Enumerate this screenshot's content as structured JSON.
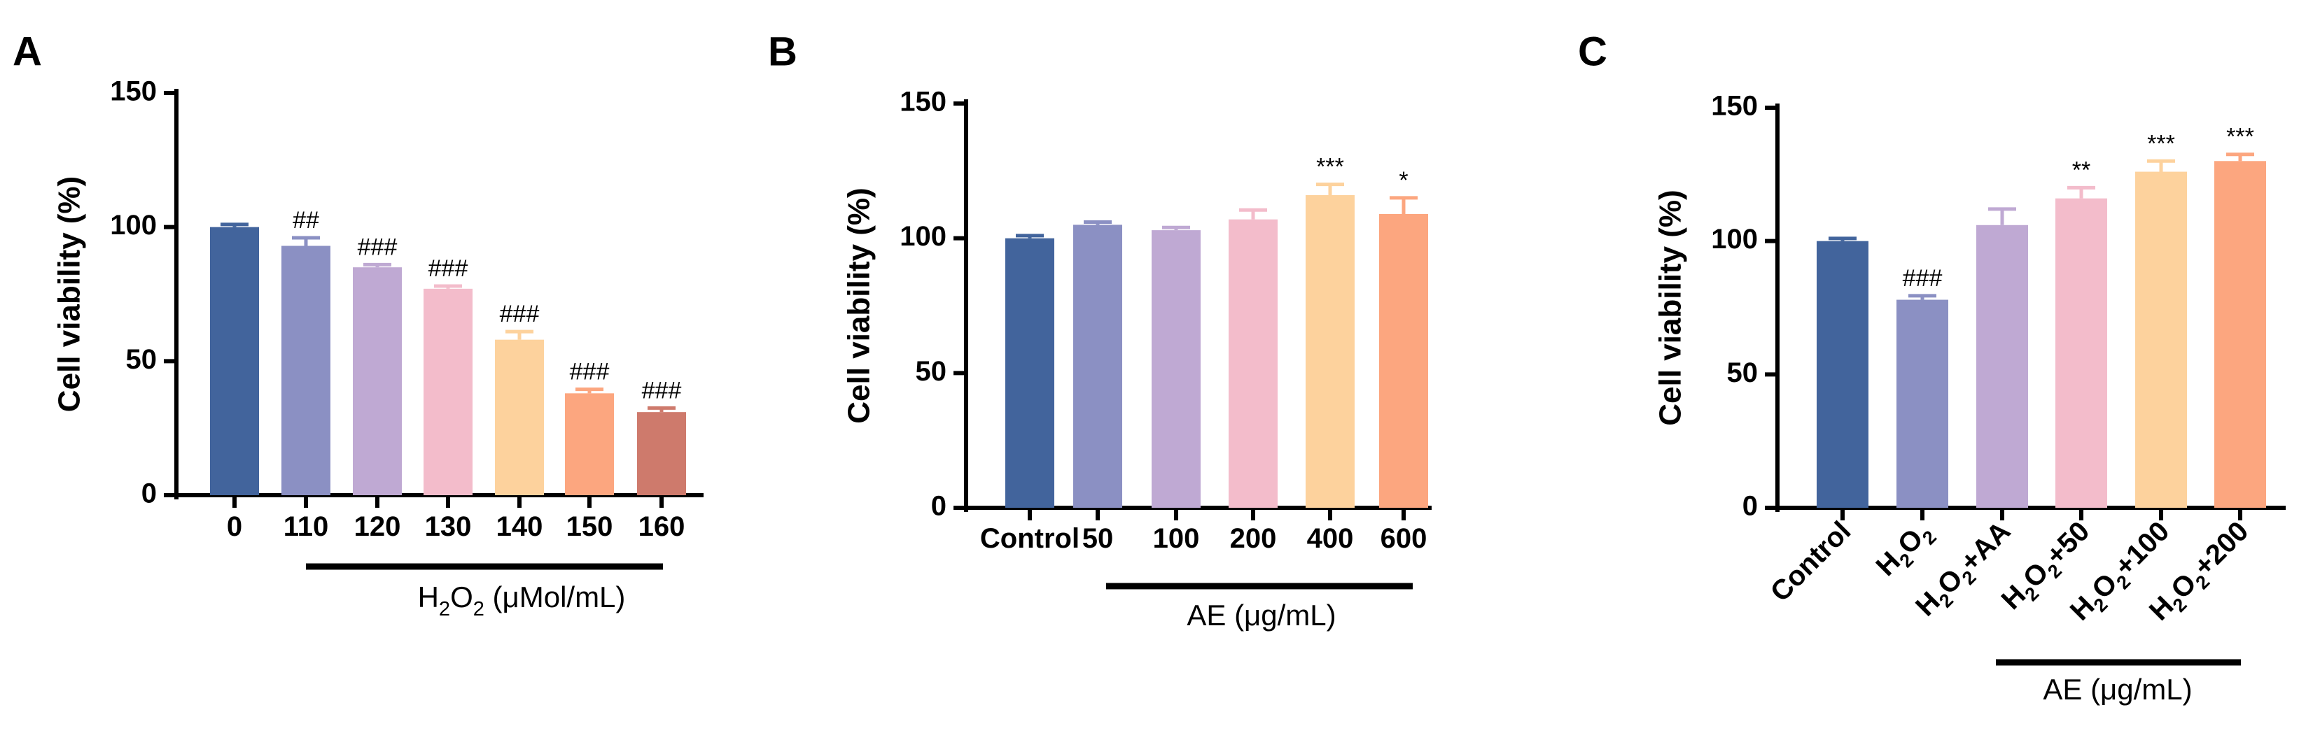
{
  "figure": {
    "panels": [
      {
        "label": "A",
        "ylabel": "Cell viability (%)",
        "ylim": [
          0,
          150
        ],
        "yticks": [
          "0",
          "50",
          "100",
          "150"
        ],
        "categories": [
          "0",
          "110",
          "120",
          "130",
          "140",
          "150",
          "160"
        ],
        "values": [
          100,
          93,
          85,
          77,
          58,
          38,
          31
        ],
        "errors": [
          1,
          3,
          1,
          1,
          3,
          1.5,
          1.5
        ],
        "significance": [
          "",
          "##",
          "###",
          "###",
          "###",
          "###",
          "###"
        ],
        "colors": [
          "#42649c",
          "#8b90c3",
          "#bfa9d3",
          "#f3bccb",
          "#fdd29d",
          "#fca67f",
          "#ce7a6c"
        ],
        "group_label": "H₂O₂ (μMol/mL)",
        "group_start_index": 1,
        "group_end_index": 6,
        "tick_rotation": 0
      },
      {
        "label": "B",
        "ylabel": "Cell viability (%)",
        "ylim": [
          0,
          150
        ],
        "yticks": [
          "0",
          "50",
          "100",
          "150"
        ],
        "categories": [
          "Control",
          "50",
          "100",
          "200",
          "400",
          "600"
        ],
        "values": [
          100,
          105,
          103,
          107,
          116,
          109
        ],
        "errors": [
          1,
          1,
          1,
          3.5,
          4,
          6
        ],
        "significance": [
          "",
          "",
          "",
          "",
          "***",
          "*"
        ],
        "colors": [
          "#42649c",
          "#8b90c3",
          "#bfa9d3",
          "#f3bccb",
          "#fdd29d",
          "#fca67f"
        ],
        "group_label": "AE (μg/mL)",
        "group_start_index": 1,
        "group_end_index": 5,
        "tick_rotation": 0
      },
      {
        "label": "C",
        "ylabel": "Cell viability (%)",
        "ylim": [
          0,
          150
        ],
        "yticks": [
          "0",
          "50",
          "100",
          "150"
        ],
        "categories": [
          "Control",
          "H₂O₂",
          "H₂O₂+AA",
          "H₂O₂+50",
          "H₂O₂+100",
          "H₂O₂+200"
        ],
        "values": [
          100,
          78,
          106,
          116,
          126,
          130
        ],
        "errors": [
          1,
          1.5,
          6,
          4,
          4,
          2.5
        ],
        "significance": [
          "",
          "###",
          "",
          "**",
          "***",
          "***"
        ],
        "colors": [
          "#42649c",
          "#8b90c3",
          "#bfa9d3",
          "#f3bccb",
          "#fdd29d",
          "#fca67f"
        ],
        "group_label": "AE (μg/mL)",
        "group_start_index": 3,
        "group_end_index": 5,
        "tick_rotation": -45
      }
    ]
  },
  "chart_data": [
    {
      "type": "bar",
      "title": "A",
      "xlabel": "H₂O₂ (μMol/mL)",
      "ylabel": "Cell viability (%)",
      "ylim": [
        0,
        150
      ],
      "categories": [
        "0",
        "110",
        "120",
        "130",
        "140",
        "150",
        "160"
      ],
      "values": [
        100,
        93,
        85,
        77,
        58,
        38,
        31
      ],
      "errors": [
        1,
        3,
        1,
        1,
        3,
        1.5,
        1.5
      ],
      "annotations": [
        "",
        "##",
        "###",
        "###",
        "###",
        "###",
        "###"
      ]
    },
    {
      "type": "bar",
      "title": "B",
      "xlabel": "AE (μg/mL)",
      "ylabel": "Cell viability (%)",
      "ylim": [
        0,
        150
      ],
      "categories": [
        "Control",
        "50",
        "100",
        "200",
        "400",
        "600"
      ],
      "values": [
        100,
        105,
        103,
        107,
        116,
        109
      ],
      "errors": [
        1,
        1,
        1,
        3.5,
        4,
        6
      ],
      "annotations": [
        "",
        "",
        "",
        "",
        "***",
        "*"
      ]
    },
    {
      "type": "bar",
      "title": "C",
      "xlabel": "AE (μg/mL)",
      "ylabel": "Cell viability (%)",
      "ylim": [
        0,
        150
      ],
      "categories": [
        "Control",
        "H₂O₂",
        "H₂O₂+AA",
        "H₂O₂+50",
        "H₂O₂+100",
        "H₂O₂+200"
      ],
      "values": [
        100,
        78,
        106,
        116,
        126,
        130
      ],
      "errors": [
        1,
        1.5,
        6,
        4,
        4,
        2.5
      ],
      "annotations": [
        "",
        "###",
        "",
        "**",
        "***",
        "***"
      ]
    }
  ]
}
